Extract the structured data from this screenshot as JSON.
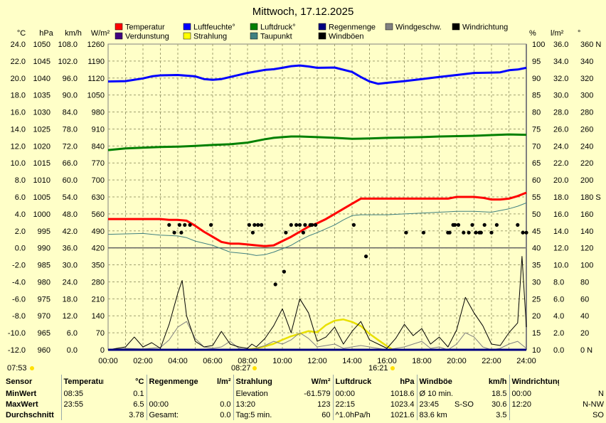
{
  "title": "Mittwoch, 17.12.2025",
  "legend": [
    {
      "name": "Temperatur",
      "color": "#FF0000"
    },
    {
      "name": "Luftfeuchte°",
      "color": "#0000FF"
    },
    {
      "name": "Luftdruck°",
      "color": "#008000"
    },
    {
      "name": "Regenmenge",
      "color": "#000080"
    },
    {
      "name": "Windgeschw.",
      "color": "#808080"
    },
    {
      "name": "Windrichtung",
      "color": "#000000"
    },
    {
      "name": "Verdunstung",
      "color": "#400080"
    },
    {
      "name": "Strahlung",
      "color": "#FFFF00"
    },
    {
      "name": "Taupunkt",
      "color": "#408080"
    },
    {
      "name": "Windböen",
      "color": "#000000"
    }
  ],
  "axes": {
    "temp": {
      "unit": "°C",
      "ticks": [
        "24.0",
        "22.0",
        "20.0",
        "18.0",
        "16.0",
        "14.0",
        "12.0",
        "10.0",
        "8.0",
        "6.0",
        "4.0",
        "2.0",
        "0.0",
        "-2.0",
        "-4.0",
        "-6.0",
        "-8.0",
        "-10.0",
        "-12.0"
      ]
    },
    "press": {
      "unit": "hPa",
      "ticks": [
        "1050",
        "1045",
        "1040",
        "1035",
        "1030",
        "1025",
        "1020",
        "1015",
        "1010",
        "1005",
        "1000",
        "995",
        "990",
        "985",
        "980",
        "975",
        "970",
        "965",
        "960"
      ]
    },
    "wind": {
      "unit": "km/h",
      "ticks": [
        "108.0",
        "102.0",
        "96.0",
        "90.0",
        "84.0",
        "78.0",
        "72.0",
        "66.0",
        "60.0",
        "54.0",
        "48.0",
        "42.0",
        "36.0",
        "30.0",
        "24.0",
        "18.0",
        "12.0",
        "6.0",
        "0.0"
      ]
    },
    "rad": {
      "unit": "W/m²",
      "ticks": [
        "1260",
        "1190",
        "1120",
        "1050",
        "980",
        "910",
        "840",
        "770",
        "700",
        "630",
        "560",
        "490",
        "420",
        "350",
        "280",
        "210",
        "140",
        "70",
        "0"
      ]
    },
    "hum": {
      "unit": "%",
      "ticks": [
        "100",
        "95",
        "90",
        "85",
        "80",
        "75",
        "70",
        "65",
        "60",
        "55",
        "50",
        "45",
        "40",
        "35",
        "30",
        "25",
        "20",
        "15",
        "10"
      ]
    },
    "rain": {
      "unit": "l/m²",
      "ticks": [
        "36.0",
        "34.0",
        "32.0",
        "30.0",
        "28.0",
        "26.0",
        "24.0",
        "22.0",
        "20.0",
        "18.0",
        "16.0",
        "14.0",
        "12.0",
        "10.0",
        "8.0",
        "6.0",
        "4.0",
        "2.0",
        "0.0"
      ]
    },
    "dir": {
      "unit": "°",
      "ticks": [
        "360 N",
        "340",
        "320",
        "300",
        "280",
        "260",
        "240",
        "220",
        "200",
        "180 S",
        "160",
        "140",
        "120",
        "100",
        "80",
        "60",
        "40",
        "20",
        "0 N"
      ]
    }
  },
  "chart_data": {
    "type": "line",
    "title": "Mittwoch, 17.12.2025",
    "x_ticks": [
      "00:00",
      "02:00",
      "04:00",
      "06:00",
      "08:00",
      "10:00",
      "12:00",
      "14:00",
      "16:00",
      "18:00",
      "20:00",
      "22:00",
      "24:00"
    ],
    "sun_markers": {
      "sunrise": "07:53",
      "noon": "08:27",
      "sunset": "16:21"
    },
    "grid": true,
    "legend_position": "top",
    "series": [
      {
        "name": "Temperatur",
        "unit": "°C",
        "x": [
          0,
          1,
          2,
          3,
          3.5,
          4,
          4.5,
          5,
          5.5,
          6,
          6.5,
          7,
          7.5,
          8,
          8.5,
          9,
          9.5,
          10,
          10.5,
          11,
          11.5,
          12,
          12.5,
          13,
          13.5,
          14,
          14.5,
          15,
          16,
          17,
          18,
          19,
          19.5,
          20,
          20.5,
          21,
          21.5,
          22,
          22.5,
          23,
          23.5,
          24
        ],
        "y": [
          3.4,
          3.4,
          3.4,
          3.4,
          3.3,
          3.3,
          3.2,
          2.6,
          1.9,
          1.3,
          0.7,
          0.5,
          0.5,
          0.4,
          0.3,
          0.2,
          0.3,
          0.8,
          1.3,
          1.9,
          2.5,
          2.9,
          3.4,
          4.0,
          4.6,
          5.2,
          5.8,
          5.8,
          5.8,
          5.8,
          5.8,
          5.8,
          5.8,
          6.0,
          6.0,
          6.0,
          5.9,
          5.7,
          5.7,
          5.8,
          6.1,
          6.5
        ]
      },
      {
        "name": "Taupunkt",
        "unit": "°C",
        "x": [
          0,
          2,
          3,
          4,
          4.5,
          5,
          6,
          6.5,
          7,
          8,
          8.5,
          9,
          9.5,
          10,
          10.5,
          11,
          11.5,
          12,
          13,
          13.5,
          14,
          14.5,
          15,
          16,
          17,
          18,
          19,
          20,
          21,
          22,
          23,
          23.5,
          24
        ],
        "y": [
          1.6,
          1.7,
          1.5,
          1.4,
          1.2,
          0.8,
          0.3,
          -0.1,
          -0.5,
          -0.7,
          -0.9,
          -0.8,
          -0.5,
          -0.1,
          0.3,
          0.9,
          1.4,
          1.8,
          2.7,
          3.3,
          3.8,
          3.9,
          3.9,
          3.9,
          4.0,
          4.1,
          4.2,
          4.3,
          4.3,
          4.2,
          4.6,
          4.9,
          5.3
        ]
      },
      {
        "name": "Luftfeuchte°",
        "unit": "%",
        "x": [
          0,
          1,
          2,
          2.5,
          3,
          4,
          5,
          5.5,
          6,
          6.5,
          7,
          8,
          9,
          9.5,
          10,
          10.5,
          11,
          11.5,
          12,
          13,
          14,
          14.5,
          15,
          15.5,
          16,
          17,
          18,
          19,
          19.5,
          20,
          21,
          22,
          22.5,
          23,
          23.5,
          24
        ],
        "y": [
          89.0,
          89.1,
          89.9,
          90.5,
          90.8,
          90.9,
          90.5,
          89.7,
          89.5,
          89.7,
          90.3,
          91.5,
          92.4,
          92.6,
          93.0,
          93.5,
          93.7,
          93.4,
          93.0,
          93.1,
          91.8,
          90.3,
          89.0,
          88.3,
          88.6,
          89.1,
          89.7,
          90.3,
          90.6,
          90.9,
          91.5,
          91.6,
          91.7,
          92.3,
          92.5,
          93.0
        ]
      },
      {
        "name": "Luftdruck°",
        "unit": "hPa",
        "x": [
          0,
          1,
          2,
          3,
          4,
          5,
          6,
          7,
          8,
          8.5,
          9,
          9.5,
          10,
          10.5,
          11,
          12,
          13,
          14,
          15,
          16,
          17,
          18,
          19,
          20,
          21,
          22,
          23,
          24
        ],
        "y": [
          1018.8,
          1019.3,
          1019.5,
          1019.7,
          1019.8,
          1020.0,
          1020.3,
          1020.5,
          1021.0,
          1021.5,
          1022.0,
          1022.4,
          1022.6,
          1022.8,
          1022.8,
          1022.6,
          1022.4,
          1022.1,
          1022.2,
          1022.4,
          1022.5,
          1022.6,
          1022.8,
          1022.9,
          1023.0,
          1023.2,
          1023.4,
          1023.3
        ]
      },
      {
        "name": "Windgeschw.",
        "unit": "km/h",
        "x": [
          0,
          1,
          2,
          3,
          3.5,
          4,
          4.5,
          5,
          5.5,
          6,
          6.5,
          7,
          7.5,
          8,
          8.5,
          9,
          9.5,
          10,
          10.5,
          11,
          11.5,
          12,
          12.5,
          13,
          13.5,
          14,
          14.5,
          15,
          15.5,
          16,
          16.5,
          17,
          17.5,
          18,
          18.5,
          19,
          19.5,
          20,
          20.5,
          21,
          21.5,
          22,
          22.5,
          23,
          23.5,
          24
        ],
        "y": [
          0,
          0.5,
          0.3,
          0.8,
          3.5,
          8.0,
          10.0,
          4.0,
          1.0,
          0.5,
          1.0,
          3.0,
          0.5,
          0,
          0.5,
          1.5,
          3.0,
          2.0,
          3.5,
          6.0,
          4.0,
          1.0,
          1.5,
          2.0,
          0.5,
          1.0,
          1.5,
          1.0,
          0.5,
          0,
          0.5,
          1.0,
          2.0,
          3.0,
          0.5,
          1.0,
          0,
          2.0,
          6.0,
          4.5,
          1.0,
          0,
          0.5,
          2.0,
          3.0,
          0.5
        ]
      },
      {
        "name": "Windböen",
        "unit": "km/h",
        "x": [
          0,
          1,
          1.5,
          2,
          2.5,
          3,
          3.5,
          4,
          4.25,
          4.5,
          5,
          5.5,
          6,
          6.5,
          7,
          7.5,
          8,
          8.25,
          8.5,
          9,
          9.5,
          10,
          10.5,
          11,
          11.5,
          12,
          12.5,
          13,
          13.5,
          14,
          14.5,
          15,
          15.5,
          16,
          16.5,
          17,
          17.5,
          18,
          18.5,
          19,
          19.5,
          20,
          20.5,
          21,
          21.5,
          22,
          22.5,
          23,
          23.5,
          23.75,
          24
        ],
        "y": [
          0,
          1.0,
          4.5,
          1.0,
          2.5,
          0.5,
          9.0,
          20.0,
          24.5,
          12.0,
          3.0,
          1.0,
          1.5,
          6.5,
          2.0,
          1.0,
          0.5,
          2.0,
          1.0,
          4.0,
          8.5,
          14.5,
          6.0,
          18.0,
          13.0,
          3.0,
          4.5,
          8.0,
          2.0,
          6.5,
          10.0,
          3.5,
          2.0,
          0.5,
          4.0,
          9.0,
          5.0,
          7.5,
          2.0,
          4.5,
          1.0,
          7.0,
          18.5,
          13.0,
          8.5,
          2.0,
          1.5,
          6.0,
          9.5,
          33.0,
          8.0
        ]
      },
      {
        "name": "Strahlung",
        "unit": "W/m²",
        "x": [
          7.9,
          8.5,
          9,
          9.5,
          10,
          10.5,
          11,
          11.5,
          12,
          12.5,
          13,
          13.5,
          14,
          14.5,
          15,
          15.5,
          16,
          16.35
        ],
        "y": [
          0,
          6,
          14,
          25,
          41,
          56,
          66,
          77,
          72,
          102,
          120,
          125,
          115,
          98,
          66,
          40,
          15,
          0
        ]
      },
      {
        "name": "Regenmenge",
        "unit": "l/m²",
        "x": [
          0,
          24
        ],
        "y": [
          0,
          0
        ]
      },
      {
        "name": "Verdunstung",
        "unit": "l/m²",
        "x": [
          0,
          24
        ],
        "y": [
          0,
          0
        ]
      },
      {
        "name": "Windrichtung",
        "unit": "°",
        "type": "scatter",
        "x": [
          3.5,
          3.8,
          4.1,
          4.2,
          4.4,
          4.7,
          5.9,
          8.1,
          8.4,
          8.6,
          8.8,
          8.3,
          10.2,
          10.5,
          10.8,
          11.0,
          11.2,
          11.3,
          11.6,
          11.7,
          11.9,
          14.1,
          14.8,
          9.6,
          10.1,
          17.1,
          18.1,
          19.5,
          19.6,
          19.8,
          19.9,
          20.1,
          20.4,
          20.7,
          20.9,
          21.1,
          21.3,
          21.4,
          21.6,
          22.0,
          22.3,
          23.5,
          23.8,
          24.0
        ],
        "y": [
          147,
          138,
          147,
          138,
          147,
          147,
          147,
          147,
          147,
          147,
          147,
          138,
          138,
          147,
          147,
          147,
          138,
          147,
          147,
          147,
          147,
          147,
          110,
          77,
          92,
          138,
          138,
          138,
          138,
          147,
          147,
          147,
          138,
          138,
          147,
          138,
          138,
          138,
          147,
          138,
          147,
          147,
          138,
          138
        ]
      }
    ]
  },
  "stats": {
    "sun_left": "07:53",
    "sun_mid": "08:27",
    "sun_right": "16:21",
    "headers": {
      "sensor": "Sensor",
      "temp": "Temperatur",
      "temp_unit": "°C",
      "rain": "Regenmenge",
      "rain_unit": "l/m²",
      "rad": "Strahlung",
      "rad_unit": "W/m²",
      "press": "Luftdruck",
      "press_unit": "hPa",
      "gust": "Windböen",
      "gust_unit": "km/h",
      "dir": "Windrichtung"
    },
    "rows": [
      {
        "label": "MinWert",
        "temp_time": "08:35",
        "temp_val": "0.1",
        "rain_time": "",
        "rain_val": "",
        "rad_label": "Elevation",
        "rad_val": "-61.579",
        "press_time": "00:00",
        "press_val": "1018.6",
        "gust_label": "Ø 10 min.",
        "gust_dir": "",
        "gust_val": "18.5",
        "dir_time": "00:00",
        "dir_val": "N"
      },
      {
        "label": "MaxWert",
        "temp_time": "23:55",
        "temp_val": "6.5",
        "rain_time": "00:00",
        "rain_val": "0.0",
        "rad_label": "13:20",
        "rad_val": "123",
        "press_time": "22:15",
        "press_val": "1023.4",
        "gust_label": "23:45",
        "gust_dir": "S-SO",
        "gust_val": "30.6",
        "dir_time": "12:20",
        "dir_val": "N-NW"
      },
      {
        "label": "Durchschnitt",
        "temp_time": "",
        "temp_val": "3.78",
        "rain_time": "Gesamt:",
        "rain_val": "0.0",
        "rad_label": "Tag:5 min.",
        "rad_val": "60",
        "press_time": "^1.0hPa/h",
        "press_val": "1021.6",
        "gust_label": "83.6 km",
        "gust_dir": "",
        "gust_val": "3.5",
        "dir_time": "",
        "dir_val": "SO"
      }
    ]
  }
}
